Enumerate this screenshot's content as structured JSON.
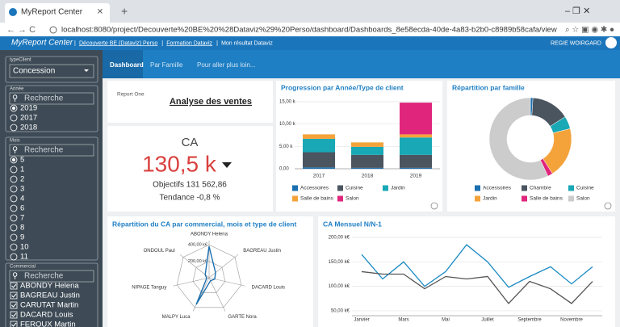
{
  "browser": {
    "tab_title": "MyReport Center",
    "url": "localhost:8080/project/Decouverte%20BE%20%28Dataviz%29%20Perso/dashboard/Dashboards_8e58ecda-40de-4a83-b2b0-c8989b58cafa/view"
  },
  "app": {
    "logo": "MyReport Center",
    "breadcrumb": [
      "Découverte BE (Dataviz) Perso",
      "Formation Dataviz",
      "Mon résultat Dataviz"
    ],
    "user": "REGIE WOIRGARD"
  },
  "sidebar": {
    "type_client": {
      "label": "typeClient",
      "value": "Concession"
    },
    "annee": {
      "label": "Année",
      "search": "Recherche",
      "options": [
        "2019",
        "2017",
        "2018"
      ],
      "selected": 0
    },
    "mois": {
      "label": "Mois",
      "search": "Recherche",
      "options": [
        "5",
        "1",
        "2",
        "3",
        "4",
        "6",
        "7",
        "8",
        "9",
        "10",
        "11"
      ],
      "selected": 0
    },
    "commercial": {
      "label": "Commercial",
      "search": "Recherche",
      "options": [
        "ABONDY Helena",
        "BAGREAU Justin",
        "CARUTAT Martin",
        "DACARD Louis",
        "FERQUX Martin"
      ]
    }
  },
  "tabs": [
    "Dashboard",
    "Par Famille",
    "Pour aller plus loin..."
  ],
  "header_widget": {
    "logo": "Report One",
    "title": "Analyse des ventes"
  },
  "kpi": {
    "label": "CA",
    "value": "130,5 k",
    "objective": "Objectifs 131 562,86",
    "trend": "Tendance -0,8 %"
  },
  "chart_data": [
    {
      "type": "bar",
      "title": "Progression par Année/Type de client",
      "categories": [
        "2017",
        "2018",
        "2019"
      ],
      "series": [
        {
          "name": "Accessoires",
          "color": "#1a6faf",
          "values": [
            300,
            200,
            200
          ]
        },
        {
          "name": "Cuisine",
          "color": "#4a5560",
          "values": [
            3400,
            2900,
            2900
          ]
        },
        {
          "name": "Jardin",
          "color": "#19a8b5",
          "values": [
            3000,
            1800,
            3900
          ]
        },
        {
          "name": "Salle de bains",
          "color": "#f4a33a",
          "values": [
            1000,
            1000,
            700
          ]
        },
        {
          "name": "Salon",
          "color": "#e0267c",
          "values": [
            0,
            0,
            7100
          ]
        }
      ],
      "stacked": true,
      "ylim": [
        0,
        15000
      ],
      "yticks": [
        {
          "value": 0,
          "label": "0,00"
        },
        {
          "value": 5000,
          "label": "5,00 k"
        },
        {
          "value": 10000,
          "label": "10,00 k"
        },
        {
          "value": 15000,
          "label": "15,00 k"
        }
      ],
      "grid": true
    },
    {
      "type": "pie",
      "title": "Répartition par famille",
      "categories": [
        "Accessoires",
        "Chambre",
        "Cuisine",
        "Jardin",
        "Salle de bains",
        "Salon"
      ],
      "values": [
        1,
        15,
        5,
        20,
        2,
        57
      ],
      "colors": [
        "#1a6faf",
        "#4a5560",
        "#19a8b5",
        "#f4a33a",
        "#e0267c",
        "#cccccc"
      ],
      "donut": true
    },
    {
      "type": "radar",
      "title": "Répartition du CA par commercial, mois et type de client",
      "categories": [
        "ABONDY Helena",
        "BAGREAU Justin",
        "DACARD Louis",
        "GARTE Nora",
        "MALPY Luca",
        "NIPAGE Tanguy",
        "ONDOUL Paul"
      ],
      "values": [
        380000,
        100000,
        70000,
        40000,
        360000,
        30000,
        60000
      ],
      "color": "#1a6faf",
      "rlim": [
        0,
        450000
      ],
      "rticks": [
        {
          "value": 200000,
          "label": "200,00 k€"
        },
        {
          "value": 400000,
          "label": "400,00 k€"
        }
      ]
    },
    {
      "type": "line",
      "title": "CA Mensuel N/N-1",
      "categories": [
        "Janvier",
        null,
        "Mars",
        null,
        "Mai",
        null,
        "Juillet",
        null,
        "Septembre",
        null,
        "Novembre",
        null
      ],
      "series": [
        {
          "color": "#1a8ac4",
          "values": [
            165000,
            115000,
            150000,
            100000,
            130000,
            185000,
            150000,
            98000,
            120000,
            140000,
            105000,
            140000
          ]
        },
        {
          "color": "#555555",
          "values": [
            130000,
            125000,
            125000,
            95000,
            120000,
            115000,
            120000,
            65000,
            110000,
            95000,
            65000,
            110000
          ]
        }
      ],
      "ylim": [
        40000,
        200000
      ],
      "yticks": [
        {
          "value": 50000,
          "label": "50,00 k€"
        },
        {
          "value": 100000,
          "label": "100,00 k€"
        },
        {
          "value": 150000,
          "label": "150,00 k€"
        },
        {
          "value": 200000,
          "label": "200,00 k€"
        }
      ],
      "grid": true
    }
  ]
}
